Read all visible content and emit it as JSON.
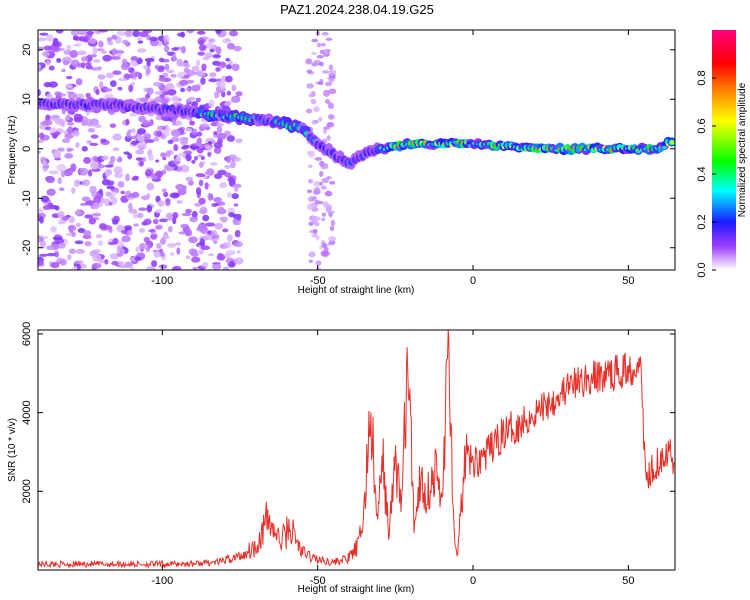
{
  "figure": {
    "title": "PAZ1.2024.238.04.19.G25"
  },
  "colors": {
    "snr_line": "#e8302a",
    "axes": "#000000",
    "background": "#ffffff"
  },
  "chart_data": [
    {
      "type": "heatmap",
      "title": "PAZ1.2024.238.04.19.G25",
      "xlabel": "Height of straight line (km)",
      "ylabel": "Frequency (Hz)",
      "xlim": [
        -140,
        65
      ],
      "ylim": [
        -24.5,
        24
      ],
      "xticks": [
        -100,
        -50,
        0,
        50
      ],
      "yticks": [
        -20,
        -10,
        0,
        10,
        20
      ],
      "colorbar": {
        "label": "Normalized spectral amplitude",
        "range": [
          0,
          1
        ],
        "ticks": [
          0.0,
          0.2,
          0.4,
          0.6,
          0.8
        ],
        "colormap": "rainbow (white-violet-blue-cyan-green-yellow-red-magenta)"
      },
      "ridge": {
        "description": "dominant frequency ridge",
        "points": [
          {
            "x": -140,
            "y": 9
          },
          {
            "x": -120,
            "y": 9
          },
          {
            "x": -100,
            "y": 8
          },
          {
            "x": -85,
            "y": 7
          },
          {
            "x": -70,
            "y": 6
          },
          {
            "x": -60,
            "y": 5
          },
          {
            "x": -55,
            "y": 4
          },
          {
            "x": -50,
            "y": 1
          },
          {
            "x": -45,
            "y": -1
          },
          {
            "x": -40,
            "y": -3
          },
          {
            "x": -35,
            "y": -1
          },
          {
            "x": -30,
            "y": 0
          },
          {
            "x": -20,
            "y": 1
          },
          {
            "x": -10,
            "y": 1
          },
          {
            "x": 0,
            "y": 1
          },
          {
            "x": 20,
            "y": 0
          },
          {
            "x": 40,
            "y": 0
          },
          {
            "x": 60,
            "y": 0
          },
          {
            "x": 65,
            "y": 2
          }
        ]
      }
    },
    {
      "type": "line",
      "xlabel": "Height of straight line (km)",
      "ylabel": "SNR (10 * v/v)",
      "xlim": [
        -140,
        65
      ],
      "ylim": [
        0,
        6100
      ],
      "xticks": [
        -100,
        -50,
        0,
        50
      ],
      "yticks": [
        2000,
        4000,
        6000
      ],
      "series": [
        {
          "points": [
            {
              "x": -140,
              "y": 150
            },
            {
              "x": -120,
              "y": 150
            },
            {
              "x": -100,
              "y": 150
            },
            {
              "x": -90,
              "y": 160
            },
            {
              "x": -82,
              "y": 200
            },
            {
              "x": -75,
              "y": 350
            },
            {
              "x": -70,
              "y": 600
            },
            {
              "x": -66,
              "y": 1300
            },
            {
              "x": -62,
              "y": 700
            },
            {
              "x": -59,
              "y": 1100
            },
            {
              "x": -55,
              "y": 450
            },
            {
              "x": -50,
              "y": 260
            },
            {
              "x": -45,
              "y": 200
            },
            {
              "x": -40,
              "y": 300
            },
            {
              "x": -37,
              "y": 600
            },
            {
              "x": -35,
              "y": 1500
            },
            {
              "x": -33,
              "y": 4200
            },
            {
              "x": -31,
              "y": 1200
            },
            {
              "x": -29,
              "y": 2700
            },
            {
              "x": -27,
              "y": 900
            },
            {
              "x": -25,
              "y": 2800
            },
            {
              "x": -23,
              "y": 1700
            },
            {
              "x": -21,
              "y": 5300
            },
            {
              "x": -19,
              "y": 1200
            },
            {
              "x": -17,
              "y": 2300
            },
            {
              "x": -15,
              "y": 1900
            },
            {
              "x": -12,
              "y": 2500
            },
            {
              "x": -10,
              "y": 1700
            },
            {
              "x": -8,
              "y": 5700
            },
            {
              "x": -6,
              "y": 800
            },
            {
              "x": -5,
              "y": 200
            },
            {
              "x": -4,
              "y": 1600
            },
            {
              "x": -2,
              "y": 2900
            },
            {
              "x": 0,
              "y": 2700
            },
            {
              "x": 5,
              "y": 3000
            },
            {
              "x": 10,
              "y": 3500
            },
            {
              "x": 15,
              "y": 3700
            },
            {
              "x": 20,
              "y": 4000
            },
            {
              "x": 25,
              "y": 4300
            },
            {
              "x": 30,
              "y": 4600
            },
            {
              "x": 35,
              "y": 4800
            },
            {
              "x": 40,
              "y": 4900
            },
            {
              "x": 45,
              "y": 5000
            },
            {
              "x": 50,
              "y": 5100
            },
            {
              "x": 53,
              "y": 5200
            },
            {
              "x": 54,
              "y": 5800
            },
            {
              "x": 55,
              "y": 3000
            },
            {
              "x": 56,
              "y": 2300
            },
            {
              "x": 58,
              "y": 2700
            },
            {
              "x": 60,
              "y": 2800
            },
            {
              "x": 62,
              "y": 3100
            },
            {
              "x": 65,
              "y": 2700
            }
          ]
        }
      ]
    }
  ]
}
